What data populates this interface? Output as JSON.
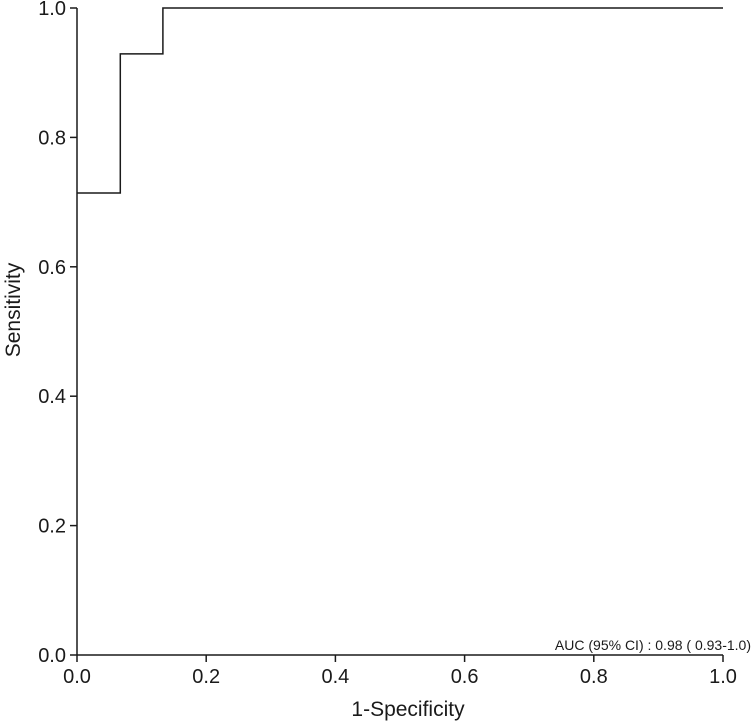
{
  "chart_data": {
    "type": "line",
    "title": "",
    "xlabel": "1-Specificity",
    "ylabel": "Sensitivity",
    "xlim": [
      0,
      1
    ],
    "ylim": [
      0,
      1
    ],
    "x_ticks": [
      0.0,
      0.2,
      0.4,
      0.6,
      0.8,
      1.0
    ],
    "y_ticks": [
      0.0,
      0.2,
      0.4,
      0.6,
      0.8,
      1.0
    ],
    "x_tick_labels": [
      "0.0",
      "0.2",
      "0.4",
      "0.6",
      "0.8",
      "1.0"
    ],
    "y_tick_labels": [
      "0.0",
      "0.2",
      "0.4",
      "0.6",
      "0.8",
      "1.0"
    ],
    "grid": false,
    "legend": "none",
    "series": [
      {
        "style": "step",
        "color": "#1a1a1a",
        "points": [
          {
            "x": 0.0,
            "y": 0.714
          },
          {
            "x": 0.067,
            "y": 0.714
          },
          {
            "x": 0.067,
            "y": 0.929
          },
          {
            "x": 0.133,
            "y": 0.929
          },
          {
            "x": 0.133,
            "y": 1.0
          },
          {
            "x": 1.0,
            "y": 1.0
          }
        ]
      }
    ],
    "annotation": "AUC (95% CI) : 0.98 ( 0.93-1.0)"
  }
}
